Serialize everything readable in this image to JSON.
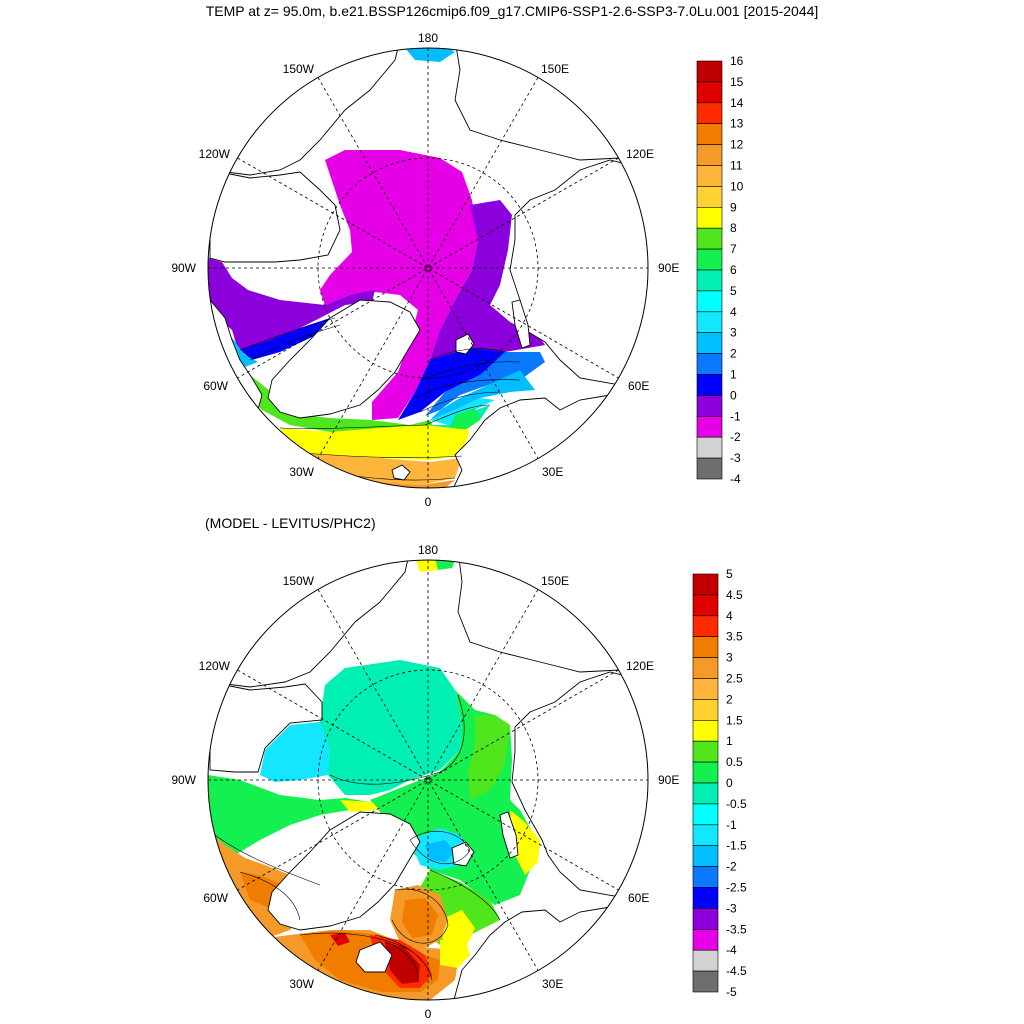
{
  "title": "TEMP at z=  95.0m, b.e21.BSSP126cmip6.f09_g17.CMIP6-SSP1-2.6-SSP3-7.0Lu.001 [2015-2044]",
  "diff_title": "(MODEL - LEVITUS/PHC2)",
  "lon_labels": {
    "l180": "180",
    "l150e": "150E",
    "l120e": "120E",
    "l90e": "90E",
    "l60e": "60E",
    "l30e": "30E",
    "l0": "0",
    "l30w": "30W",
    "l60w": "60W",
    "l90w": "90W",
    "l120w": "120W",
    "l150w": "150W"
  },
  "colorbar_top": {
    "labels": [
      "16",
      "15",
      "14",
      "13",
      "12",
      "11",
      "10",
      "9",
      "8",
      "7",
      "6",
      "5",
      "4",
      "3",
      "2",
      "1",
      "0",
      "-1",
      "-2",
      "-3",
      "-4"
    ],
    "colors": [
      "#c00000",
      "#e00000",
      "#ff2a00",
      "#f07d00",
      "#f59a28",
      "#ffb43c",
      "#ffd232",
      "#ffff00",
      "#50e61e",
      "#14f050",
      "#00f0b4",
      "#00ffff",
      "#14e6ff",
      "#00beff",
      "#0a78ff",
      "#0000ff",
      "#8c00dc",
      "#e600e6",
      "#d2d2d2",
      "#6e6e6e"
    ]
  },
  "colorbar_bottom": {
    "labels": [
      "5",
      "4.5",
      "4",
      "3.5",
      "3",
      "2.5",
      "2",
      "1.5",
      "1",
      "0.5",
      "0",
      "-0.5",
      "-1",
      "-1.5",
      "-2",
      "-2.5",
      "-3",
      "-3.5",
      "-4",
      "-4.5",
      "-5"
    ],
    "colors": [
      "#c00000",
      "#e00000",
      "#ff2a00",
      "#f07d00",
      "#f59a28",
      "#ffb43c",
      "#ffd232",
      "#ffff00",
      "#50e61e",
      "#14f050",
      "#00f0b4",
      "#00ffff",
      "#14e6ff",
      "#00beff",
      "#0a78ff",
      "#0000ff",
      "#8c00dc",
      "#e600e6",
      "#d2d2d2",
      "#6e6e6e"
    ]
  }
}
